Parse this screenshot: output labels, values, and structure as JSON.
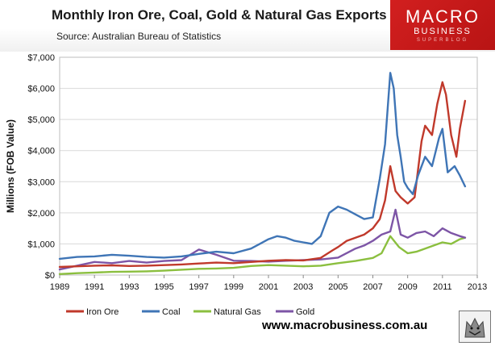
{
  "title": "Monthly Iron Ore, Coal, Gold & Natural Gas Exports",
  "subtitle": "Source:  Australian Bureau of Statistics",
  "logo": {
    "line1": "MACRO",
    "line2": "BUSINESS",
    "line3": "SUPERBLOG",
    "color": "#d21f1f"
  },
  "website": "www.macrobusiness.com.au",
  "chart_data": {
    "type": "line",
    "title": "Monthly Iron Ore, Coal, Gold & Natural Gas Exports",
    "xlabel": "",
    "ylabel": "Millions (FOB Value)",
    "xlim": [
      1989,
      2013
    ],
    "ylim": [
      0,
      7000
    ],
    "grid": true,
    "legend": "bottom",
    "y_ticks": [
      {
        "value": 0,
        "label": "$0"
      },
      {
        "value": 1000,
        "label": "$1,000"
      },
      {
        "value": 2000,
        "label": "$2,000"
      },
      {
        "value": 3000,
        "label": "$3,000"
      },
      {
        "value": 4000,
        "label": "$4,000"
      },
      {
        "value": 5000,
        "label": "$5,000"
      },
      {
        "value": 6000,
        "label": "$6,000"
      },
      {
        "value": 7000,
        "label": "$7,000"
      }
    ],
    "x_ticks": [
      {
        "value": 1989,
        "label": "1989"
      },
      {
        "value": 1991,
        "label": "1991"
      },
      {
        "value": 1993,
        "label": "1993"
      },
      {
        "value": 1995,
        "label": "1995"
      },
      {
        "value": 1997,
        "label": "1997"
      },
      {
        "value": 1999,
        "label": "1999"
      },
      {
        "value": 2001,
        "label": "2001"
      },
      {
        "value": 2003,
        "label": "2003"
      },
      {
        "value": 2005,
        "label": "2005"
      },
      {
        "value": 2007,
        "label": "2007"
      },
      {
        "value": 2009,
        "label": "2009"
      },
      {
        "value": 2011,
        "label": "2011"
      },
      {
        "value": 2013,
        "label": "2013"
      }
    ],
    "series": [
      {
        "name": "Iron Ore",
        "color": "#c0392b",
        "x": [
          1989,
          1990,
          1991,
          1992,
          1993,
          1994,
          1995,
          1996,
          1997,
          1998,
          1999,
          2000,
          2001,
          2002,
          2003,
          2004,
          2004.7,
          2005,
          2005.5,
          2006,
          2006.5,
          2007,
          2007.4,
          2007.7,
          2008,
          2008.3,
          2008.6,
          2009,
          2009.4,
          2009.8,
          2010,
          2010.4,
          2010.7,
          2011,
          2011.2,
          2011.5,
          2011.8,
          2012,
          2012.3
        ],
        "values": [
          260,
          280,
          300,
          310,
          290,
          300,
          320,
          340,
          370,
          400,
          380,
          420,
          460,
          480,
          470,
          550,
          800,
          900,
          1100,
          1200,
          1300,
          1500,
          1800,
          2400,
          3500,
          2700,
          2500,
          2300,
          2500,
          4300,
          4800,
          4500,
          5500,
          6200,
          5800,
          4500,
          3800,
          4700,
          5600
        ]
      },
      {
        "name": "Coal",
        "color": "#3f75b6",
        "x": [
          1989,
          1990,
          1991,
          1992,
          1993,
          1994,
          1995,
          1996,
          1997,
          1998,
          1999,
          2000,
          2000.5,
          2001,
          2001.5,
          2002,
          2002.5,
          2003,
          2003.5,
          2004,
          2004.5,
          2005,
          2005.5,
          2006,
          2006.5,
          2007,
          2007.4,
          2007.7,
          2008,
          2008.2,
          2008.4,
          2008.6,
          2008.8,
          2009,
          2009.3,
          2009.6,
          2010,
          2010.4,
          2010.8,
          2011,
          2011.3,
          2011.7,
          2012,
          2012.3
        ],
        "values": [
          520,
          580,
          600,
          650,
          620,
          580,
          560,
          600,
          680,
          750,
          700,
          850,
          1000,
          1150,
          1250,
          1200,
          1100,
          1050,
          1000,
          1250,
          2000,
          2200,
          2100,
          1950,
          1800,
          1850,
          3100,
          4200,
          6500,
          6000,
          4500,
          3800,
          3000,
          2800,
          2600,
          3200,
          3800,
          3500,
          4400,
          4700,
          3300,
          3500,
          3200,
          2850
        ]
      },
      {
        "name": "Natural Gas",
        "color": "#8bbf3f",
        "x": [
          1989,
          1990,
          1991,
          1992,
          1993,
          1994,
          1995,
          1996,
          1997,
          1998,
          1999,
          2000,
          2001,
          2002,
          2003,
          2004,
          2005,
          2006,
          2007,
          2007.5,
          2008,
          2008.5,
          2009,
          2009.5,
          2010,
          2010.5,
          2011,
          2011.5,
          2012,
          2012.3
        ],
        "values": [
          30,
          60,
          80,
          100,
          110,
          120,
          140,
          170,
          200,
          210,
          230,
          290,
          320,
          300,
          280,
          300,
          380,
          450,
          550,
          700,
          1250,
          900,
          700,
          750,
          850,
          950,
          1050,
          1000,
          1150,
          1200
        ]
      },
      {
        "name": "Gold",
        "color": "#7d55a6",
        "x": [
          1989,
          1990,
          1991,
          1992,
          1993,
          1994,
          1995,
          1996,
          1997,
          1998,
          1999,
          2000,
          2001,
          2002,
          2003,
          2004,
          2005,
          2006,
          2006.5,
          2007,
          2007.5,
          2008,
          2008.3,
          2008.6,
          2009,
          2009.5,
          2010,
          2010.5,
          2011,
          2011.5,
          2012,
          2012.3
        ],
        "values": [
          180,
          300,
          420,
          380,
          450,
          400,
          450,
          480,
          820,
          650,
          460,
          450,
          430,
          460,
          480,
          500,
          560,
          850,
          950,
          1100,
          1300,
          1400,
          2100,
          1300,
          1200,
          1350,
          1400,
          1250,
          1500,
          1350,
          1250,
          1200
        ]
      }
    ]
  }
}
